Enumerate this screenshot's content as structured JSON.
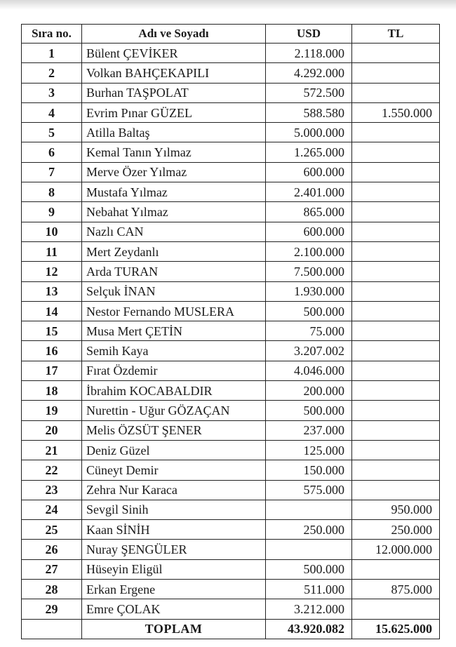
{
  "headers": {
    "no": "Sıra no.",
    "name": "Adı ve Soyadı",
    "usd": "USD",
    "tl": "TL"
  },
  "rows": [
    {
      "no": "1",
      "name": "Bülent ÇEVİKER",
      "usd": "2.118.000",
      "tl": ""
    },
    {
      "no": "2",
      "name": "Volkan BAHÇEKAPILI",
      "usd": "4.292.000",
      "tl": ""
    },
    {
      "no": "3",
      "name": "Burhan TAŞPOLAT",
      "usd": "572.500",
      "tl": ""
    },
    {
      "no": "4",
      "name": "Evrim Pınar GÜZEL",
      "usd": "588.580",
      "tl": "1.550.000"
    },
    {
      "no": "5",
      "name": "Atilla Baltaş",
      "usd": "5.000.000",
      "tl": ""
    },
    {
      "no": "6",
      "name": "Kemal Tanın Yılmaz",
      "usd": "1.265.000",
      "tl": ""
    },
    {
      "no": "7",
      "name": "Merve Özer Yılmaz",
      "usd": "600.000",
      "tl": ""
    },
    {
      "no": "8",
      "name": "Mustafa Yılmaz",
      "usd": "2.401.000",
      "tl": ""
    },
    {
      "no": "9",
      "name": "Nebahat Yılmaz",
      "usd": "865.000",
      "tl": ""
    },
    {
      "no": "10",
      "name": "Nazlı CAN",
      "usd": "600.000",
      "tl": ""
    },
    {
      "no": "11",
      "name": "Mert Zeydanlı",
      "usd": "2.100.000",
      "tl": ""
    },
    {
      "no": "12",
      "name": "Arda TURAN",
      "usd": "7.500.000",
      "tl": ""
    },
    {
      "no": "13",
      "name": "Selçuk İNAN",
      "usd": "1.930.000",
      "tl": ""
    },
    {
      "no": "14",
      "name": "Nestor Fernando MUSLERA",
      "usd": "500.000",
      "tl": ""
    },
    {
      "no": "15",
      "name": "Musa Mert ÇETİN",
      "usd": "75.000",
      "tl": ""
    },
    {
      "no": "16",
      "name": "Semih Kaya",
      "usd": "3.207.002",
      "tl": ""
    },
    {
      "no": "17",
      "name": "Fırat Özdemir",
      "usd": "4.046.000",
      "tl": ""
    },
    {
      "no": "18",
      "name": "İbrahim KOCABALDIR",
      "usd": "200.000",
      "tl": ""
    },
    {
      "no": "19",
      "name": "Nurettin - Uğur GÖZAÇAN",
      "usd": "500.000",
      "tl": ""
    },
    {
      "no": "20",
      "name": "Melis ÖZSÜT ŞENER",
      "usd": "237.000",
      "tl": ""
    },
    {
      "no": "21",
      "name": "Deniz Güzel",
      "usd": "125.000",
      "tl": ""
    },
    {
      "no": "22",
      "name": "Cüneyt Demir",
      "usd": "150.000",
      "tl": ""
    },
    {
      "no": "23",
      "name": "Zehra Nur Karaca",
      "usd": "575.000",
      "tl": ""
    },
    {
      "no": "24",
      "name": "Sevgil Sinih",
      "usd": "",
      "tl": "950.000"
    },
    {
      "no": "25",
      "name": "Kaan SİNİH",
      "usd": "250.000",
      "tl": "250.000"
    },
    {
      "no": "26",
      "name": "Nuray ŞENGÜLER",
      "usd": "",
      "tl": "12.000.000"
    },
    {
      "no": "27",
      "name": "Hüseyin Eligül",
      "usd": "500.000",
      "tl": ""
    },
    {
      "no": "28",
      "name": "Erkan Ergene",
      "usd": "511.000",
      "tl": "875.000"
    },
    {
      "no": "29",
      "name": "Emre ÇOLAK",
      "usd": "3.212.000",
      "tl": ""
    }
  ],
  "total": {
    "label": "TOPLAM",
    "usd": "43.920.082",
    "tl": "15.625.000"
  }
}
